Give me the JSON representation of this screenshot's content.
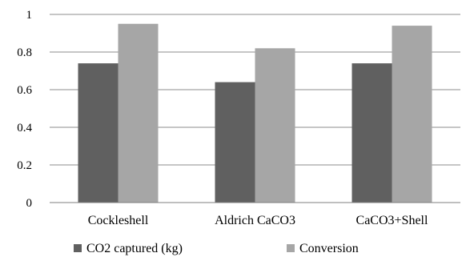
{
  "chart_data": {
    "type": "bar",
    "categories": [
      "Cockleshell",
      "Aldrich CaCO3",
      "CaCO3+Shell"
    ],
    "series": [
      {
        "name": "CO2 captured (kg)",
        "values": [
          0.74,
          0.64,
          0.74
        ],
        "color": "#606060"
      },
      {
        "name": "Conversion",
        "values": [
          0.95,
          0.82,
          0.94
        ],
        "color": "#a6a6a6"
      }
    ],
    "title": "",
    "xlabel": "",
    "ylabel": "",
    "ylim": [
      0,
      1
    ],
    "yticks": [
      "0",
      "0.2",
      "0.4",
      "0.6",
      "0.8",
      "1"
    ],
    "grid": true,
    "legend_position": "bottom"
  }
}
